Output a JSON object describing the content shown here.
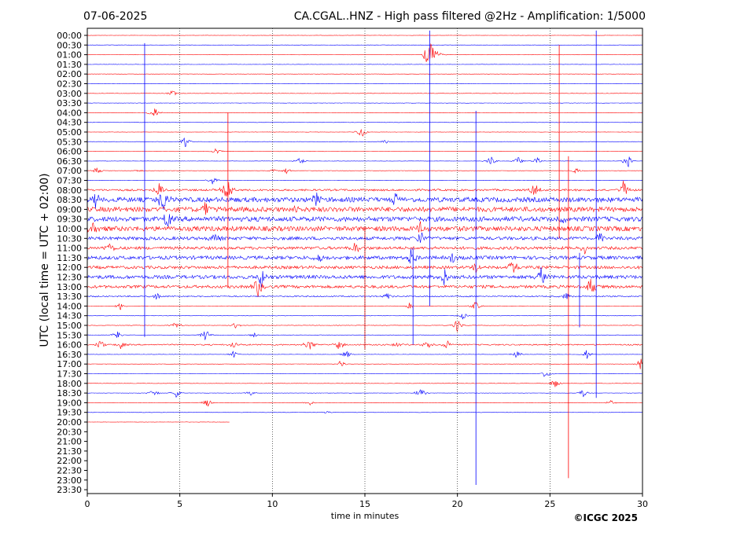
{
  "chart_data": {
    "type": "line",
    "title": "CA.CGAL..HNZ - High pass filtered @2Hz - Amplification: 1/5000",
    "date": "07-06-2025",
    "xlabel": "time in minutes",
    "ylabel": "UTC (local time = UTC + 02:00)",
    "copyright": "©ICGC 2025",
    "xlim": [
      0,
      30
    ],
    "x_ticks": [
      0,
      5,
      10,
      15,
      20,
      25,
      30
    ],
    "grid": "vertical-dotted",
    "row_colors": [
      "#ff0000",
      "#0000ff"
    ],
    "row_labels": [
      "00:00",
      "00:30",
      "01:00",
      "01:30",
      "02:00",
      "02:30",
      "03:00",
      "03:30",
      "04:00",
      "04:30",
      "05:00",
      "05:30",
      "06:00",
      "06:30",
      "07:00",
      "07:30",
      "08:00",
      "08:30",
      "09:00",
      "09:30",
      "10:00",
      "10:30",
      "11:00",
      "11:30",
      "12:00",
      "12:30",
      "13:00",
      "13:30",
      "14:00",
      "14:30",
      "15:00",
      "15:30",
      "16:00",
      "16:30",
      "17:00",
      "17:30",
      "18:00",
      "18:30",
      "19:00",
      "19:30",
      "20:00",
      "20:30",
      "21:00",
      "21:30",
      "22:00",
      "22:30",
      "23:00",
      "23:30"
    ],
    "rows": [
      {
        "label": "00:00",
        "noise": 0.2
      },
      {
        "label": "00:30",
        "noise": 0.2
      },
      {
        "label": "01:00",
        "noise": 0.2,
        "events": [
          {
            "t": 18.5,
            "a": 35,
            "up": true
          },
          {
            "t": 19.0,
            "a": 4
          }
        ]
      },
      {
        "label": "01:30",
        "noise": 0.2
      },
      {
        "label": "02:00",
        "noise": 0.2
      },
      {
        "label": "02:30",
        "noise": 0.2
      },
      {
        "label": "03:00",
        "noise": 0.2,
        "events": [
          {
            "t": 4.6,
            "a": 5
          }
        ]
      },
      {
        "label": "03:30",
        "noise": 0.2
      },
      {
        "label": "04:00",
        "noise": 0.2,
        "events": [
          {
            "t": 3.6,
            "a": 9
          }
        ]
      },
      {
        "label": "04:30",
        "noise": 0.2
      },
      {
        "label": "05:00",
        "noise": 0.2,
        "events": [
          {
            "t": 14.8,
            "a": 9
          }
        ]
      },
      {
        "label": "05:30",
        "noise": 0.2,
        "events": [
          {
            "t": 5.3,
            "a": 7
          },
          {
            "t": 16.1,
            "a": 3
          }
        ]
      },
      {
        "label": "06:00",
        "noise": 0.2,
        "events": [
          {
            "t": 7.0,
            "a": 6
          }
        ]
      },
      {
        "label": "06:30",
        "noise": 0.2,
        "events": [
          {
            "t": 11.5,
            "a": 6
          },
          {
            "t": 21.8,
            "a": 7
          },
          {
            "t": 23.3,
            "a": 6
          },
          {
            "t": 24.3,
            "a": 5
          },
          {
            "t": 29.2,
            "a": 9
          }
        ]
      },
      {
        "label": "07:00",
        "noise": 0.2,
        "events": [
          {
            "t": 0.5,
            "a": 6
          },
          {
            "t": 2.8,
            "a": 3
          },
          {
            "t": 10.0,
            "a": 3
          },
          {
            "t": 10.8,
            "a": 5
          },
          {
            "t": 26.4,
            "a": 5
          }
        ]
      },
      {
        "label": "07:30",
        "noise": 0.2,
        "events": [
          {
            "t": 6.8,
            "a": 8
          }
        ]
      },
      {
        "label": "08:00",
        "noise": 1.2,
        "events": [
          {
            "t": 3.9,
            "a": 12
          },
          {
            "t": 7.6,
            "a": 20
          },
          {
            "t": 24.2,
            "a": 12
          },
          {
            "t": 29.0,
            "a": 14
          }
        ]
      },
      {
        "label": "08:30",
        "noise": 3.0,
        "events": [
          {
            "t": 0.4,
            "a": 12
          },
          {
            "t": 4.1,
            "a": 20
          },
          {
            "t": 12.4,
            "a": 12
          },
          {
            "t": 16.6,
            "a": 10
          }
        ]
      },
      {
        "label": "09:00",
        "noise": 3.0,
        "events": [
          {
            "t": 11.2,
            "a": 10
          },
          {
            "t": 6.4,
            "a": 10
          }
        ]
      },
      {
        "label": "09:30",
        "noise": 3.0,
        "events": [
          {
            "t": 4.3,
            "a": 16
          },
          {
            "t": 25.6,
            "a": 7
          }
        ]
      },
      {
        "label": "10:00",
        "noise": 3.0,
        "events": [
          {
            "t": 0.3,
            "a": 12
          },
          {
            "t": 18.0,
            "a": 10
          }
        ]
      },
      {
        "label": "10:30",
        "noise": 2.0,
        "events": [
          {
            "t": 6.9,
            "a": 8
          },
          {
            "t": 18.0,
            "a": 12
          },
          {
            "t": 27.7,
            "a": 10
          }
        ]
      },
      {
        "label": "11:00",
        "noise": 1.8,
        "events": [
          {
            "t": 1.2,
            "a": 8
          },
          {
            "t": 14.5,
            "a": 10
          },
          {
            "t": 26.9,
            "a": 8
          }
        ]
      },
      {
        "label": "11:30",
        "noise": 2.2,
        "events": [
          {
            "t": 12.5,
            "a": 10
          },
          {
            "t": 17.5,
            "a": 14
          },
          {
            "t": 19.7,
            "a": 8
          }
        ]
      },
      {
        "label": "12:00",
        "noise": 1.8,
        "events": [
          {
            "t": 23.0,
            "a": 12
          },
          {
            "t": 21.0,
            "a": 8
          }
        ]
      },
      {
        "label": "12:30",
        "noise": 2.2,
        "events": [
          {
            "t": 9.4,
            "a": 14
          },
          {
            "t": 19.3,
            "a": 14
          },
          {
            "t": 24.5,
            "a": 18
          }
        ]
      },
      {
        "label": "13:00",
        "noise": 1.8,
        "events": [
          {
            "t": 9.2,
            "a": 16
          },
          {
            "t": 27.2,
            "a": 16
          }
        ]
      },
      {
        "label": "13:30",
        "noise": 0.8,
        "events": [
          {
            "t": 3.8,
            "a": 5
          },
          {
            "t": 16.2,
            "a": 6
          },
          {
            "t": 25.9,
            "a": 6
          }
        ]
      },
      {
        "label": "14:00",
        "noise": 0.2,
        "events": [
          {
            "t": 1.8,
            "a": 5
          },
          {
            "t": 17.4,
            "a": 4
          },
          {
            "t": 21.0,
            "a": 7
          }
        ]
      },
      {
        "label": "14:30",
        "noise": 0.2,
        "events": [
          {
            "t": 20.3,
            "a": 5
          }
        ]
      },
      {
        "label": "15:00",
        "noise": 0.3,
        "events": [
          {
            "t": 4.8,
            "a": 6
          },
          {
            "t": 8.0,
            "a": 5
          },
          {
            "t": 20.0,
            "a": 10
          }
        ]
      },
      {
        "label": "15:30",
        "noise": 0.2,
        "events": [
          {
            "t": 1.6,
            "a": 7
          },
          {
            "t": 6.4,
            "a": 9
          },
          {
            "t": 9.0,
            "a": 4
          }
        ]
      },
      {
        "label": "16:00",
        "noise": 0.8,
        "events": [
          {
            "t": 0.7,
            "a": 8
          },
          {
            "t": 1.8,
            "a": 6
          },
          {
            "t": 7.9,
            "a": 6
          },
          {
            "t": 12.0,
            "a": 10
          },
          {
            "t": 13.6,
            "a": 7
          },
          {
            "t": 16.7,
            "a": 6
          },
          {
            "t": 18.4,
            "a": 7
          },
          {
            "t": 19.5,
            "a": 8
          }
        ]
      },
      {
        "label": "16:30",
        "noise": 0.2,
        "events": [
          {
            "t": 7.9,
            "a": 5
          },
          {
            "t": 14.0,
            "a": 6
          },
          {
            "t": 23.2,
            "a": 6
          },
          {
            "t": 27.0,
            "a": 7
          }
        ]
      },
      {
        "label": "17:00",
        "noise": 0.2,
        "events": [
          {
            "t": 13.7,
            "a": 5
          },
          {
            "t": 29.9,
            "a": 8
          }
        ]
      },
      {
        "label": "17:30",
        "noise": 0.2,
        "events": [
          {
            "t": 24.8,
            "a": 7
          }
        ]
      },
      {
        "label": "18:00",
        "noise": 0.2,
        "events": [
          {
            "t": 25.3,
            "a": 8
          }
        ]
      },
      {
        "label": "18:30",
        "noise": 0.2,
        "events": [
          {
            "t": 3.6,
            "a": 6
          },
          {
            "t": 4.8,
            "a": 6
          },
          {
            "t": 8.8,
            "a": 4
          },
          {
            "t": 18.0,
            "a": 8
          },
          {
            "t": 26.8,
            "a": 6
          }
        ]
      },
      {
        "label": "19:00",
        "noise": 0.2,
        "events": [
          {
            "t": 6.5,
            "a": 6
          },
          {
            "t": 12.0,
            "a": 4
          },
          {
            "t": 28.3,
            "a": 4
          }
        ]
      },
      {
        "label": "19:30",
        "noise": 0.2,
        "events": [
          {
            "t": 12.9,
            "a": 3
          }
        ]
      },
      {
        "label": "20:00",
        "noise": 0.2,
        "trace_end": 7.7
      },
      {
        "label": "20:30",
        "trace_end": 0
      },
      {
        "label": "21:00",
        "trace_end": 0
      },
      {
        "label": "21:30",
        "trace_end": 0
      },
      {
        "label": "22:00",
        "trace_end": 0
      },
      {
        "label": "22:30",
        "trace_end": 0
      },
      {
        "label": "23:00",
        "trace_end": 0
      },
      {
        "label": "23:30",
        "trace_end": 0
      }
    ],
    "long_spikes": [
      {
        "t": 3.1,
        "from_row": 0.8,
        "to_row": 31.2,
        "color": "#0000ff"
      },
      {
        "t": 18.5,
        "from_row": -0.5,
        "to_row": 28.0,
        "color": "#0000ff"
      },
      {
        "t": 21.0,
        "from_row": 7.8,
        "to_row": 46.5,
        "color": "#0000ff"
      },
      {
        "t": 27.5,
        "from_row": -0.5,
        "to_row": 37.5,
        "color": "#0000ff"
      },
      {
        "t": 26.0,
        "from_row": 12.5,
        "to_row": 45.8,
        "color": "#ff0000"
      },
      {
        "t": 25.5,
        "from_row": 1.0,
        "to_row": 21.0,
        "color": "#ff0000"
      },
      {
        "t": 7.6,
        "from_row": 8.0,
        "to_row": 26.0,
        "color": "#ff0000"
      },
      {
        "t": 15.0,
        "from_row": 20.0,
        "to_row": 32.5,
        "color": "#ff0000"
      },
      {
        "t": 17.6,
        "from_row": 22.0,
        "to_row": 32.0,
        "color": "#0000ff"
      },
      {
        "t": 26.6,
        "from_row": 22.5,
        "to_row": 30.2,
        "color": "#0000ff"
      }
    ]
  }
}
